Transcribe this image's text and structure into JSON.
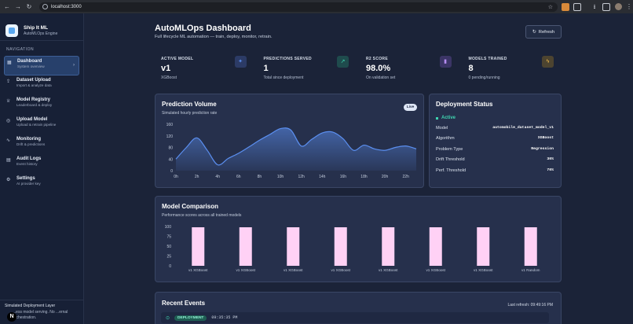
{
  "browser": {
    "url": "localhost:3000"
  },
  "sidebar": {
    "brand_name": "Ship It ML",
    "brand_sub": "AutoMLOps Engine",
    "section_label": "NAVIGATION",
    "items": [
      {
        "label": "Dashboard",
        "sub": "System overview",
        "icon": "grid-icon",
        "active": true
      },
      {
        "label": "Dataset Upload",
        "sub": "Import & analyze data",
        "icon": "upload-icon"
      },
      {
        "label": "Model Registry",
        "sub": "Leaderboard & deploy",
        "icon": "trophy-icon"
      },
      {
        "label": "Upload Model",
        "sub": "Upload & retrain pipeline",
        "icon": "globe-icon"
      },
      {
        "label": "Monitoring",
        "sub": "Drift & predictions",
        "icon": "activity-icon"
      },
      {
        "label": "Audit Logs",
        "sub": "Event history",
        "icon": "file-icon"
      },
      {
        "label": "Settings",
        "sub": "AI provider key",
        "icon": "gear-icon"
      }
    ],
    "footer_title": "Simulated Deployment Layer",
    "footer_text": "...ess model serving. No ...ernal orchestration.",
    "footer_badge": "N"
  },
  "header": {
    "title": "AutoMLOps Dashboard",
    "subtitle": "Full lifecycle ML automation — train, deploy, monitor, retrain.",
    "refresh_label": "Refresh"
  },
  "stats": [
    {
      "label": "ACTIVE MODEL",
      "value": "v1",
      "sub": "XGBoost",
      "icon": "sparkle-icon",
      "color": "#5b8ff0",
      "bg": "#2c3b66"
    },
    {
      "label": "PREDICTIONS SERVED",
      "value": "1",
      "sub": "Total since deployment",
      "icon": "trend-up-icon",
      "color": "#3fd5b0",
      "bg": "#1f4b4d"
    },
    {
      "label": "R2 SCORE",
      "value": "98.0%",
      "sub": "On validation set",
      "icon": "bar-chart-icon",
      "color": "#b58cf0",
      "bg": "#3b3566"
    },
    {
      "label": "MODELS TRAINED",
      "value": "8",
      "sub": "0 pending/running",
      "icon": "pulse-icon",
      "color": "#f0b84a",
      "bg": "#4d4430"
    }
  ],
  "prediction_volume": {
    "title": "Prediction Volume",
    "subtitle": "Simulated hourly prediction rate",
    "badge": "Live"
  },
  "deployment_status": {
    "title": "Deployment Status",
    "status": "Active",
    "rows": [
      {
        "label": "Model",
        "value": "automobile_dataset_model_v1"
      },
      {
        "label": "Algorithm",
        "value": "XGBoost"
      },
      {
        "label": "Problem Type",
        "value": "Regression"
      },
      {
        "label": "Drift Threshold",
        "value": "30%"
      },
      {
        "label": "Perf. Threshold",
        "value": "70%"
      }
    ]
  },
  "model_comparison": {
    "title": "Model Comparison",
    "subtitle": "Performance scores across all trained models"
  },
  "recent_events": {
    "title": "Recent Events",
    "last_refresh": "Last refresh: 09:49:16 PM",
    "events": [
      {
        "type": "DEPLOYMENT",
        "time": "09:35:35 PM"
      }
    ]
  },
  "chart_data": [
    {
      "type": "area",
      "x": [
        "0h",
        "1h",
        "2h",
        "3h",
        "4h",
        "5h",
        "6h",
        "7h",
        "8h",
        "9h",
        "10h",
        "11h",
        "12h",
        "13h",
        "14h",
        "15h",
        "16h",
        "17h",
        "18h",
        "19h",
        "20h",
        "21h",
        "22h",
        "23h"
      ],
      "xticks": [
        "0h",
        "2h",
        "4h",
        "6h",
        "8h",
        "10h",
        "12h",
        "14h",
        "16h",
        "18h",
        "20h",
        "22h"
      ],
      "y": [
        40,
        80,
        113,
        70,
        20,
        42,
        60,
        82,
        105,
        125,
        145,
        140,
        85,
        108,
        130,
        133,
        110,
        70,
        88,
        75,
        70,
        80,
        85,
        75
      ],
      "ylim": [
        0,
        160
      ],
      "yticks": [
        0,
        40,
        80,
        120,
        160
      ],
      "color": "#5b8ff0"
    },
    {
      "type": "bar",
      "categories": [
        "v1 XGBoost",
        "v1 XGBoost",
        "v1 XGBoost",
        "v1 XGBoost",
        "v1 XGBoost",
        "v1 XGBoost",
        "v1 XGBoost",
        "v1 Random"
      ],
      "values": [
        98,
        98,
        98,
        98,
        98,
        98,
        98,
        98
      ],
      "ylim": [
        0,
        100
      ],
      "yticks": [
        0,
        25,
        50,
        75,
        100
      ],
      "color": "#ffd1f5"
    }
  ]
}
